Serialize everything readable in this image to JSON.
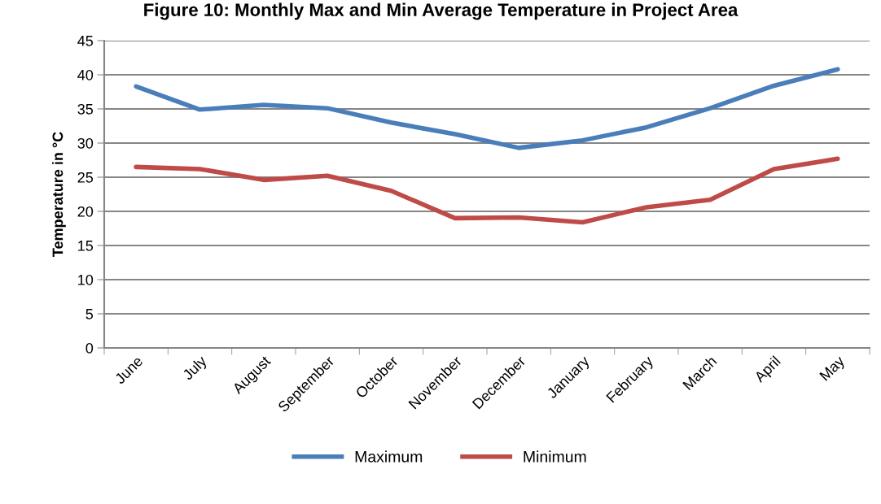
{
  "chart_data": {
    "type": "line",
    "title": "Figure 10: Monthly Max and Min Average Temperature in Project Area",
    "ylabel": "Temperature in °C",
    "categories": [
      "June",
      "July",
      "August",
      "September",
      "October",
      "November",
      "December",
      "January",
      "February",
      "March",
      "April",
      "May"
    ],
    "series": [
      {
        "name": "Maximum",
        "color": "#4a7ebb",
        "values": [
          38.3,
          34.9,
          35.6,
          35.1,
          33.0,
          31.3,
          29.3,
          30.4,
          32.3,
          35.1,
          38.4,
          40.8
        ]
      },
      {
        "name": "Minimum",
        "color": "#be4b48",
        "values": [
          26.5,
          26.2,
          24.6,
          25.2,
          23.0,
          19.0,
          19.1,
          18.4,
          20.6,
          21.7,
          26.2,
          27.7
        ]
      }
    ],
    "ylim": [
      0,
      45
    ],
    "yticks": [
      0,
      5,
      10,
      15,
      20,
      25,
      30,
      35,
      40,
      45
    ],
    "grid": "y",
    "legend": "bottom",
    "marker": "none",
    "line_style": "solid"
  }
}
